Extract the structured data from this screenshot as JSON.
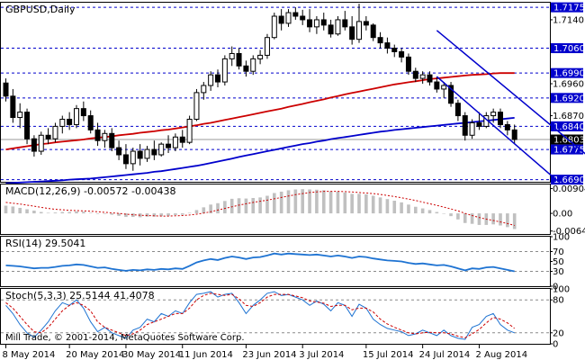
{
  "chart_data": {
    "type": "candlestick",
    "symbol_label": "GBPUSD,Daily",
    "watermark": "Mill Trade, © 2001-2014, MetaQuotes Software Corp.",
    "x_dates": [
      "8 May 2014",
      "20 May 2014",
      "30 May 2014",
      "11 Jun 2014",
      "23 Jun 2014",
      "3 Jul 2014",
      "15 Jul 2014",
      "24 Jul 2014",
      "2 Aug 2014"
    ],
    "price_axis": {
      "ylim": [
        1.6684,
        1.7188
      ],
      "ticks": [
        "1.7140",
        "1.6960",
        "1.6870"
      ]
    },
    "levels": [
      {
        "label": "1.7175",
        "value": 1.7175,
        "color": "#0000cc",
        "style": "dashed"
      },
      {
        "label": "1.7060",
        "value": 1.706,
        "color": "#0000cc",
        "style": "dashed"
      },
      {
        "label": "1.6990",
        "value": 1.699,
        "color": "#0000cc",
        "style": "dashed"
      },
      {
        "label": "1.6920",
        "value": 1.692,
        "color": "#0000cc",
        "style": "dashed"
      },
      {
        "label": "1.6840",
        "value": 1.684,
        "color": "#0000cc",
        "style": "dashed"
      },
      {
        "label": "1.6775",
        "value": 1.6775,
        "color": "#0000cc",
        "style": "dashed"
      },
      {
        "label": "1.6690",
        "value": 1.669,
        "color": "#0000cc",
        "style": "dashed"
      }
    ],
    "current_price": {
      "label": "1.6803",
      "value": 1.6803,
      "color": "#000000"
    },
    "candles": [
      {
        "o": 1.6962,
        "h": 1.6975,
        "l": 1.691,
        "c": 1.6925
      },
      {
        "o": 1.6925,
        "h": 1.6945,
        "l": 1.685,
        "c": 1.6865
      },
      {
        "o": 1.6865,
        "h": 1.6905,
        "l": 1.6835,
        "c": 1.688
      },
      {
        "o": 1.688,
        "h": 1.689,
        "l": 1.679,
        "c": 1.6805
      },
      {
        "o": 1.6805,
        "h": 1.6815,
        "l": 1.6755,
        "c": 1.677
      },
      {
        "o": 1.677,
        "h": 1.6825,
        "l": 1.676,
        "c": 1.6815
      },
      {
        "o": 1.6815,
        "h": 1.6835,
        "l": 1.679,
        "c": 1.6805
      },
      {
        "o": 1.6805,
        "h": 1.685,
        "l": 1.6795,
        "c": 1.684
      },
      {
        "o": 1.684,
        "h": 1.687,
        "l": 1.682,
        "c": 1.686
      },
      {
        "o": 1.686,
        "h": 1.688,
        "l": 1.683,
        "c": 1.6845
      },
      {
        "o": 1.6845,
        "h": 1.69,
        "l": 1.6835,
        "c": 1.689
      },
      {
        "o": 1.689,
        "h": 1.691,
        "l": 1.6855,
        "c": 1.687
      },
      {
        "o": 1.687,
        "h": 1.6885,
        "l": 1.682,
        "c": 1.683
      },
      {
        "o": 1.683,
        "h": 1.685,
        "l": 1.6785,
        "c": 1.68
      },
      {
        "o": 1.68,
        "h": 1.683,
        "l": 1.678,
        "c": 1.682
      },
      {
        "o": 1.682,
        "h": 1.6835,
        "l": 1.677,
        "c": 1.678
      },
      {
        "o": 1.678,
        "h": 1.68,
        "l": 1.6745,
        "c": 1.676
      },
      {
        "o": 1.676,
        "h": 1.679,
        "l": 1.672,
        "c": 1.6735
      },
      {
        "o": 1.6735,
        "h": 1.678,
        "l": 1.6715,
        "c": 1.677
      },
      {
        "o": 1.677,
        "h": 1.679,
        "l": 1.673,
        "c": 1.675
      },
      {
        "o": 1.675,
        "h": 1.6785,
        "l": 1.674,
        "c": 1.6775
      },
      {
        "o": 1.6775,
        "h": 1.68,
        "l": 1.6745,
        "c": 1.676
      },
      {
        "o": 1.676,
        "h": 1.6795,
        "l": 1.6755,
        "c": 1.679
      },
      {
        "o": 1.679,
        "h": 1.6815,
        "l": 1.6765,
        "c": 1.678
      },
      {
        "o": 1.678,
        "h": 1.682,
        "l": 1.677,
        "c": 1.681
      },
      {
        "o": 1.681,
        "h": 1.683,
        "l": 1.678,
        "c": 1.6795
      },
      {
        "o": 1.6795,
        "h": 1.687,
        "l": 1.679,
        "c": 1.686
      },
      {
        "o": 1.686,
        "h": 1.6945,
        "l": 1.6855,
        "c": 1.6935
      },
      {
        "o": 1.6935,
        "h": 1.6965,
        "l": 1.6915,
        "c": 1.6955
      },
      {
        "o": 1.6955,
        "h": 1.6995,
        "l": 1.694,
        "c": 1.6985
      },
      {
        "o": 1.6985,
        "h": 1.7,
        "l": 1.695,
        "c": 1.6965
      },
      {
        "o": 1.6965,
        "h": 1.704,
        "l": 1.6955,
        "c": 1.703
      },
      {
        "o": 1.703,
        "h": 1.7065,
        "l": 1.701,
        "c": 1.7045
      },
      {
        "o": 1.7045,
        "h": 1.706,
        "l": 1.7,
        "c": 1.701
      },
      {
        "o": 1.701,
        "h": 1.7025,
        "l": 1.698,
        "c": 1.6995
      },
      {
        "o": 1.6995,
        "h": 1.704,
        "l": 1.6985,
        "c": 1.703
      },
      {
        "o": 1.703,
        "h": 1.7055,
        "l": 1.7015,
        "c": 1.704
      },
      {
        "o": 1.704,
        "h": 1.71,
        "l": 1.703,
        "c": 1.709
      },
      {
        "o": 1.709,
        "h": 1.716,
        "l": 1.7085,
        "c": 1.715
      },
      {
        "o": 1.715,
        "h": 1.717,
        "l": 1.711,
        "c": 1.713
      },
      {
        "o": 1.713,
        "h": 1.717,
        "l": 1.712,
        "c": 1.716
      },
      {
        "o": 1.716,
        "h": 1.7175,
        "l": 1.714,
        "c": 1.715
      },
      {
        "o": 1.715,
        "h": 1.7168,
        "l": 1.7125,
        "c": 1.714
      },
      {
        "o": 1.714,
        "h": 1.717,
        "l": 1.7105,
        "c": 1.712
      },
      {
        "o": 1.712,
        "h": 1.715,
        "l": 1.71,
        "c": 1.714
      },
      {
        "o": 1.714,
        "h": 1.716,
        "l": 1.711,
        "c": 1.7125
      },
      {
        "o": 1.7125,
        "h": 1.714,
        "l": 1.709,
        "c": 1.71
      },
      {
        "o": 1.71,
        "h": 1.715,
        "l": 1.7095,
        "c": 1.714
      },
      {
        "o": 1.714,
        "h": 1.7165,
        "l": 1.711,
        "c": 1.712
      },
      {
        "o": 1.712,
        "h": 1.715,
        "l": 1.707,
        "c": 1.7085
      },
      {
        "o": 1.7085,
        "h": 1.7185,
        "l": 1.7075,
        "c": 1.7135
      },
      {
        "o": 1.7135,
        "h": 1.715,
        "l": 1.711,
        "c": 1.7125
      },
      {
        "o": 1.7125,
        "h": 1.713,
        "l": 1.708,
        "c": 1.709
      },
      {
        "o": 1.709,
        "h": 1.7105,
        "l": 1.706,
        "c": 1.7075
      },
      {
        "o": 1.7075,
        "h": 1.709,
        "l": 1.7045,
        "c": 1.706
      },
      {
        "o": 1.706,
        "h": 1.707,
        "l": 1.7035,
        "c": 1.705
      },
      {
        "o": 1.705,
        "h": 1.706,
        "l": 1.702,
        "c": 1.7035
      },
      {
        "o": 1.7035,
        "h": 1.7045,
        "l": 1.6985,
        "c": 1.6995
      },
      {
        "o": 1.6995,
        "h": 1.7005,
        "l": 1.6965,
        "c": 1.6975
      },
      {
        "o": 1.6975,
        "h": 1.6995,
        "l": 1.696,
        "c": 1.6985
      },
      {
        "o": 1.6985,
        "h": 1.6995,
        "l": 1.6955,
        "c": 1.6965
      },
      {
        "o": 1.6965,
        "h": 1.698,
        "l": 1.6935,
        "c": 1.6945
      },
      {
        "o": 1.6945,
        "h": 1.6965,
        "l": 1.692,
        "c": 1.6955
      },
      {
        "o": 1.6955,
        "h": 1.6965,
        "l": 1.6895,
        "c": 1.6905
      },
      {
        "o": 1.6905,
        "h": 1.6915,
        "l": 1.6855,
        "c": 1.687
      },
      {
        "o": 1.687,
        "h": 1.688,
        "l": 1.68,
        "c": 1.6815
      },
      {
        "o": 1.6815,
        "h": 1.686,
        "l": 1.6805,
        "c": 1.685
      },
      {
        "o": 1.685,
        "h": 1.688,
        "l": 1.683,
        "c": 1.684
      },
      {
        "o": 1.684,
        "h": 1.688,
        "l": 1.6835,
        "c": 1.687
      },
      {
        "o": 1.687,
        "h": 1.689,
        "l": 1.685,
        "c": 1.688
      },
      {
        "o": 1.688,
        "h": 1.689,
        "l": 1.6835,
        "c": 1.6845
      },
      {
        "o": 1.6845,
        "h": 1.6855,
        "l": 1.6815,
        "c": 1.683
      },
      {
        "o": 1.683,
        "h": 1.6845,
        "l": 1.679,
        "c": 1.6803
      }
    ],
    "ma_slow": {
      "color": "#cc0000",
      "values": [
        1.6775,
        1.6778,
        1.6781,
        1.6784,
        1.6787,
        1.679,
        1.6792,
        1.6795,
        1.6797,
        1.6799,
        1.6801,
        1.6803,
        1.6806,
        1.6808,
        1.681,
        1.6812,
        1.6815,
        1.6817,
        1.6819,
        1.6822,
        1.6824,
        1.6826,
        1.6829,
        1.6831,
        1.6834,
        1.6837,
        1.684,
        1.6843,
        1.6847,
        1.685,
        1.6854,
        1.6858,
        1.6862,
        1.6866,
        1.687,
        1.6874,
        1.6878,
        1.6882,
        1.6886,
        1.689,
        1.6895,
        1.6899,
        1.6903,
        1.6908,
        1.6912,
        1.6916,
        1.6921,
        1.6925,
        1.693,
        1.6934,
        1.6938,
        1.6942,
        1.6946,
        1.695,
        1.6954,
        1.6958,
        1.6961,
        1.6964,
        1.6967,
        1.697,
        1.6973,
        1.6975,
        1.6977,
        1.6979,
        1.6981,
        1.6983,
        1.6985,
        1.6986,
        1.6987,
        1.6989,
        1.699,
        1.699,
        1.699
      ]
    },
    "ma_fast": {
      "color": "#0000cc",
      "values": [
        1.668,
        1.6681,
        1.6682,
        1.6683,
        1.6684,
        1.6685,
        1.6686,
        1.6687,
        1.6688,
        1.669,
        1.6691,
        1.6692,
        1.6693,
        1.6695,
        1.6697,
        1.6699,
        1.6701,
        1.6703,
        1.6705,
        1.6707,
        1.6709,
        1.6712,
        1.6714,
        1.6717,
        1.672,
        1.6723,
        1.6726,
        1.6729,
        1.6733,
        1.6737,
        1.6741,
        1.6745,
        1.6749,
        1.6754,
        1.6758,
        1.6762,
        1.6766,
        1.677,
        1.6774,
        1.6778,
        1.6782,
        1.6786,
        1.679,
        1.6793,
        1.6797,
        1.68,
        1.6804,
        1.6807,
        1.681,
        1.6813,
        1.6816,
        1.6819,
        1.6822,
        1.6825,
        1.6827,
        1.683,
        1.6832,
        1.6834,
        1.6836,
        1.6838,
        1.684,
        1.6842,
        1.6844,
        1.6846,
        1.6848,
        1.685,
        1.6852,
        1.6854,
        1.6856,
        1.6858,
        1.686,
        1.6862,
        1.6864
      ]
    },
    "channel_upper": {
      "color": "#0000cc",
      "from": {
        "i": 61,
        "v": 1.711
      },
      "to": {
        "i": 84,
        "v": 1.673
      }
    },
    "channel_lower": {
      "color": "#0000cc",
      "from": {
        "i": 61,
        "v": 1.698
      },
      "to": {
        "i": 78,
        "v": 1.6688
      }
    },
    "macd": {
      "label": "MACD(12,26,9) -0.00572 -0.00438",
      "ylim": [
        -0.0075,
        0.0105
      ],
      "ticks": [
        "0.00904",
        "0.00",
        "-0.00642"
      ],
      "histogram": [
        0.0028,
        0.0025,
        0.002,
        0.0015,
        0.001,
        0.0005,
        0.0002,
        0.0003,
        0.0005,
        0.0005,
        0.0007,
        0.0006,
        0.0002,
        -0.0002,
        -0.0002,
        -0.0005,
        -0.0009,
        -0.0013,
        -0.0013,
        -0.0014,
        -0.0012,
        -0.0012,
        -0.001,
        -0.0009,
        -0.0006,
        -0.0005,
        0.0002,
        0.0012,
        0.0022,
        0.0032,
        0.0037,
        0.0045,
        0.0053,
        0.0055,
        0.0054,
        0.0056,
        0.0058,
        0.0064,
        0.0074,
        0.0079,
        0.0084,
        0.0087,
        0.0088,
        0.0087,
        0.0086,
        0.0084,
        0.008,
        0.0079,
        0.0076,
        0.0071,
        0.0071,
        0.0069,
        0.0064,
        0.0058,
        0.0052,
        0.0046,
        0.004,
        0.0032,
        0.0024,
        0.0018,
        0.0012,
        0.0005,
        0.0,
        -0.001,
        -0.0022,
        -0.0035,
        -0.0038,
        -0.0042,
        -0.0042,
        -0.004,
        -0.0044,
        -0.005,
        -0.0057
      ],
      "signal": [
        0.004,
        0.0037,
        0.0034,
        0.003,
        0.0026,
        0.0022,
        0.0018,
        0.0015,
        0.0013,
        0.0011,
        0.001,
        0.0009,
        0.0008,
        0.0006,
        0.0004,
        0.0002,
        0.0,
        -0.0003,
        -0.0005,
        -0.0007,
        -0.0008,
        -0.0009,
        -0.001,
        -0.001,
        -0.0009,
        -0.0008,
        -0.0006,
        -0.0003,
        0.0001,
        0.0006,
        0.0012,
        0.0018,
        0.0024,
        0.003,
        0.0035,
        0.004,
        0.0044,
        0.0048,
        0.0053,
        0.0058,
        0.0063,
        0.0068,
        0.0072,
        0.0076,
        0.0078,
        0.008,
        0.008,
        0.008,
        0.0079,
        0.0078,
        0.0076,
        0.0074,
        0.0072,
        0.0069,
        0.0065,
        0.0061,
        0.0057,
        0.0052,
        0.0047,
        0.0041,
        0.0035,
        0.0029,
        0.0023,
        0.0016,
        0.0009,
        0.0,
        -0.0008,
        -0.0015,
        -0.0021,
        -0.0026,
        -0.0031,
        -0.0037,
        -0.0044
      ],
      "hist_color": "#c0c0c0",
      "signal_color": "#cc0000"
    },
    "rsi": {
      "label": "RSI(14) 29.5041",
      "ylim": [
        0,
        100
      ],
      "ticks": [
        "100",
        "70",
        "50",
        "30",
        "0"
      ],
      "levels": [
        70,
        30
      ],
      "color": "#1e73d2",
      "values": [
        42,
        41,
        40,
        38,
        36,
        37,
        37,
        39,
        41,
        42,
        44,
        43,
        40,
        37,
        38,
        35,
        33,
        31,
        33,
        32,
        34,
        33,
        35,
        34,
        36,
        35,
        41,
        48,
        52,
        55,
        53,
        57,
        60,
        58,
        55,
        58,
        59,
        62,
        66,
        64,
        66,
        65,
        64,
        63,
        64,
        62,
        60,
        62,
        60,
        57,
        60,
        59,
        56,
        54,
        52,
        51,
        50,
        47,
        45,
        46,
        44,
        42,
        43,
        40,
        36,
        32,
        36,
        35,
        38,
        39,
        36,
        33,
        30
      ]
    },
    "stoch": {
      "label": "Stoch(5,3,3) 25.5144 41.4078",
      "ylim": [
        0,
        100
      ],
      "ticks": [
        "100",
        "80",
        "20",
        "0"
      ],
      "levels": [
        80,
        20
      ],
      "main_color": "#1e73d2",
      "signal_color": "#cc0000",
      "main": [
        70,
        55,
        35,
        20,
        12,
        25,
        40,
        60,
        75,
        70,
        80,
        65,
        40,
        22,
        30,
        20,
        15,
        10,
        25,
        30,
        45,
        40,
        55,
        50,
        60,
        55,
        75,
        90,
        92,
        95,
        85,
        90,
        92,
        75,
        55,
        70,
        80,
        92,
        95,
        88,
        90,
        85,
        80,
        70,
        78,
        72,
        60,
        75,
        70,
        50,
        72,
        65,
        45,
        35,
        28,
        25,
        22,
        15,
        18,
        25,
        20,
        15,
        25,
        15,
        10,
        8,
        30,
        35,
        50,
        55,
        35,
        25,
        20
      ],
      "signal": [
        75,
        65,
        50,
        35,
        22,
        20,
        30,
        45,
        60,
        70,
        75,
        70,
        60,
        40,
        30,
        25,
        20,
        15,
        18,
        25,
        35,
        40,
        45,
        50,
        55,
        55,
        65,
        80,
        88,
        92,
        90,
        88,
        90,
        82,
        70,
        68,
        75,
        85,
        90,
        90,
        90,
        87,
        84,
        78,
        76,
        74,
        68,
        70,
        70,
        62,
        65,
        65,
        58,
        45,
        36,
        30,
        25,
        20,
        18,
        20,
        21,
        20,
        20,
        18,
        14,
        11,
        18,
        26,
        38,
        48,
        45,
        38,
        28
      ]
    },
    "copyright": "Mill Trade, © 2001-2014, MetaQuotes Software Corp."
  }
}
